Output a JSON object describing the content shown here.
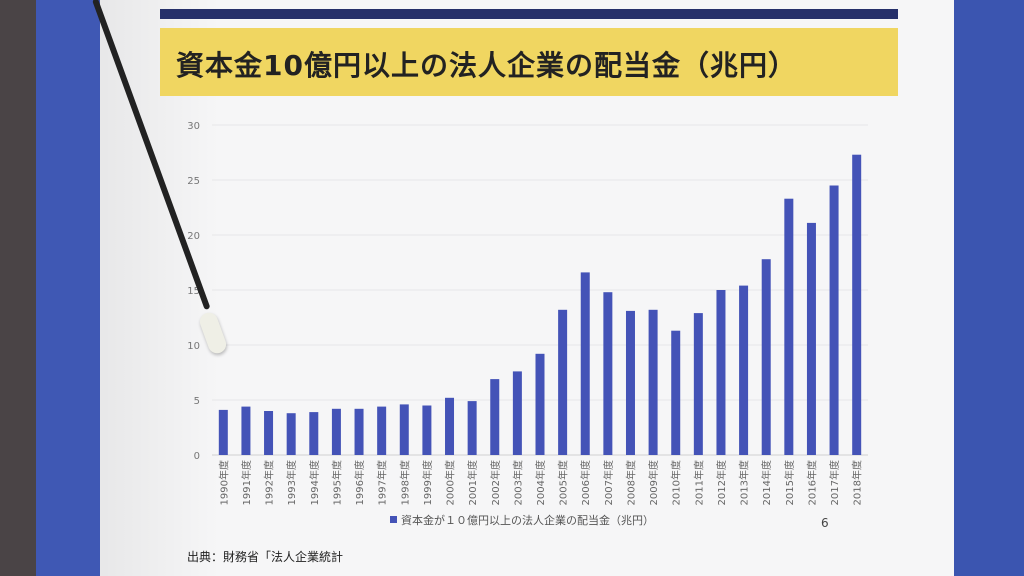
{
  "title": "資本金10億円以上の法人企業の配当金（兆円）",
  "legend_label": "資本金が１０億円以上の法人企業の配当金（兆円）",
  "page_number": "6",
  "source": "出典：財務省「法人企業統計",
  "colors": {
    "bar": "#4453b7",
    "title_band": "#f0d661",
    "navy_bar": "#26306a"
  },
  "chart_data": {
    "type": "bar",
    "categories": [
      "1990年度",
      "1991年度",
      "1992年度",
      "1993年度",
      "1994年度",
      "1995年度",
      "1996年度",
      "1997年度",
      "1998年度",
      "1999年度",
      "2000年度",
      "2001年度",
      "2002年度",
      "2003年度",
      "2004年度",
      "2005年度",
      "2006年度",
      "2007年度",
      "2008年度",
      "2009年度",
      "2010年度",
      "2011年度",
      "2012年度",
      "2013年度",
      "2014年度",
      "2015年度",
      "2016年度",
      "2017年度",
      "2018年度"
    ],
    "values": [
      4.1,
      4.4,
      4.0,
      3.8,
      3.9,
      4.2,
      4.2,
      4.4,
      4.6,
      4.5,
      5.2,
      4.9,
      6.9,
      7.6,
      9.2,
      13.2,
      16.6,
      14.8,
      13.1,
      13.2,
      11.3,
      12.9,
      15.0,
      15.4,
      17.8,
      23.3,
      21.1,
      24.5,
      27.3
    ],
    "yticks": [
      0,
      5,
      10,
      15,
      20,
      25,
      30
    ],
    "ylim": [
      0,
      30
    ],
    "grid": true,
    "legend": "bottom"
  }
}
